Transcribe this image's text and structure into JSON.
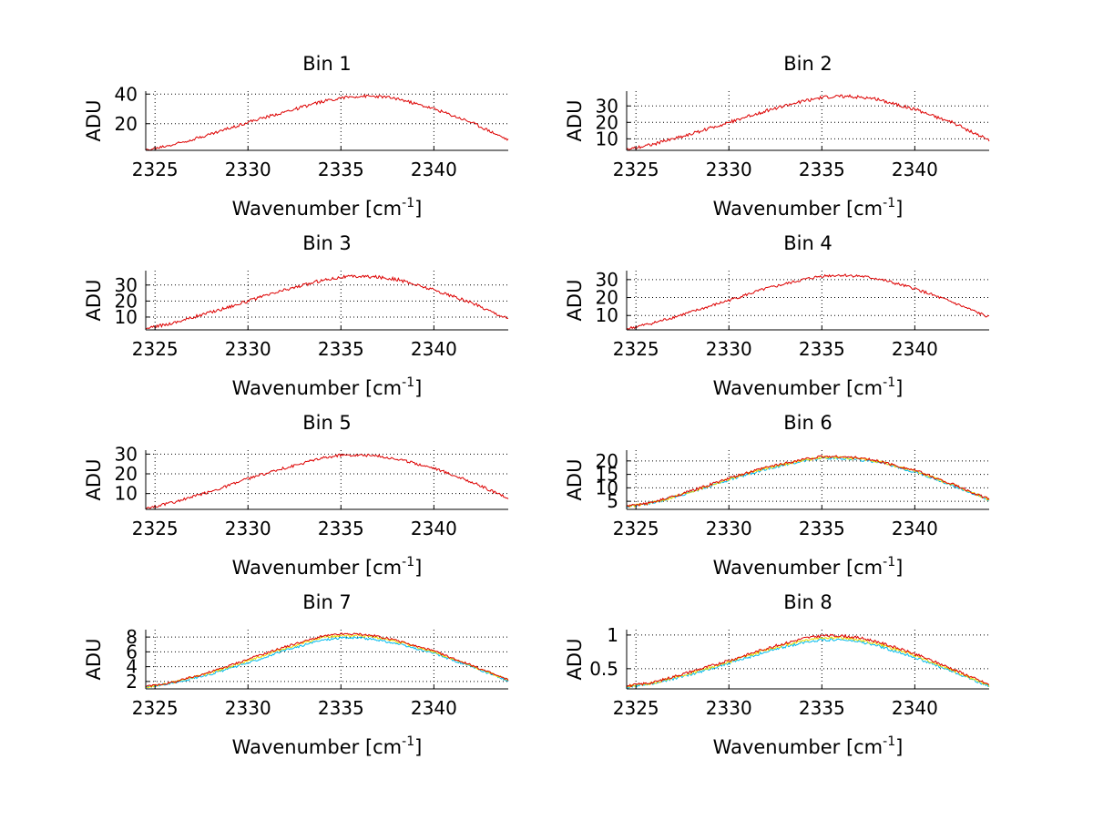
{
  "chart_data": [
    {
      "type": "line",
      "title": "Bin 1",
      "xlabel": "Wavenumber [cm",
      "xlabel_sup": "-1",
      "xlabel_end": "]",
      "ylabel": "ADU",
      "xlim": [
        2324.5,
        2344
      ],
      "ylim": [
        2,
        42
      ],
      "xticks": [
        2325,
        2330,
        2335,
        2340
      ],
      "yticks": [
        20,
        40
      ],
      "x": [
        2324.5,
        2326,
        2328,
        2330,
        2332,
        2334,
        2335,
        2336,
        2337,
        2338,
        2340,
        2342,
        2344
      ],
      "series": [
        {
          "values": [
            2.0,
            6.0,
            13.0,
            21.0,
            28.0,
            35.0,
            37.5,
            38.5,
            38.5,
            37.0,
            30.0,
            21.0,
            9.0
          ],
          "color": "#dd0000"
        }
      ],
      "noise": 1.0,
      "grid": true
    },
    {
      "type": "line",
      "title": "Bin 2",
      "xlabel": "Wavenumber [cm",
      "xlabel_sup": "-1",
      "xlabel_end": "]",
      "ylabel": "ADU",
      "xlim": [
        2324.5,
        2344
      ],
      "ylim": [
        3,
        39
      ],
      "xticks": [
        2325,
        2330,
        2335,
        2340
      ],
      "yticks": [
        10,
        20,
        30
      ],
      "x": [
        2324.5,
        2326,
        2328,
        2330,
        2332,
        2334,
        2335,
        2336,
        2337,
        2338,
        2340,
        2342,
        2344
      ],
      "series": [
        {
          "values": [
            3.5,
            7.0,
            13.0,
            20.0,
            27.0,
            33.0,
            35.0,
            36.0,
            35.5,
            34.0,
            28.0,
            20.0,
            9.0
          ],
          "color": "#dd0000"
        }
      ],
      "noise": 1.0,
      "grid": true
    },
    {
      "type": "line",
      "title": "Bin 3",
      "xlabel": "Wavenumber [cm",
      "xlabel_sup": "-1",
      "xlabel_end": "]",
      "ylabel": "ADU",
      "xlim": [
        2324.5,
        2344
      ],
      "ylim": [
        2,
        39
      ],
      "xticks": [
        2325,
        2330,
        2335,
        2340
      ],
      "yticks": [
        10,
        20,
        30
      ],
      "x": [
        2324.5,
        2326,
        2328,
        2330,
        2332,
        2334,
        2335,
        2336,
        2337,
        2338,
        2340,
        2342,
        2344
      ],
      "series": [
        {
          "values": [
            2.5,
            6.5,
            13.0,
            20.0,
            27.0,
            33.0,
            35.0,
            35.5,
            35.0,
            33.5,
            27.0,
            19.0,
            9.0
          ],
          "color": "#dd0000"
        }
      ],
      "noise": 1.0,
      "grid": true
    },
    {
      "type": "line",
      "title": "Bin 4",
      "xlabel": "Wavenumber [cm",
      "xlabel_sup": "-1",
      "xlabel_end": "]",
      "ylabel": "ADU",
      "xlim": [
        2324.5,
        2344
      ],
      "ylim": [
        2,
        35
      ],
      "xticks": [
        2325,
        2330,
        2335,
        2340
      ],
      "yticks": [
        10,
        20,
        30
      ],
      "x": [
        2324.5,
        2326,
        2328,
        2330,
        2332,
        2334,
        2335,
        2336,
        2337,
        2338,
        2340,
        2342,
        2344
      ],
      "series": [
        {
          "values": [
            2.5,
            6.0,
            12.0,
            18.5,
            25.0,
            30.0,
            32.0,
            32.5,
            32.0,
            30.5,
            25.0,
            17.5,
            9.0
          ],
          "color": "#dd0000"
        }
      ],
      "noise": 0.8,
      "grid": true
    },
    {
      "type": "line",
      "title": "Bin 5",
      "xlabel": "Wavenumber [cm",
      "xlabel_sup": "-1",
      "xlabel_end": "]",
      "ylabel": "ADU",
      "xlim": [
        2324.5,
        2344
      ],
      "ylim": [
        2,
        32
      ],
      "xticks": [
        2325,
        2330,
        2335,
        2340
      ],
      "yticks": [
        10,
        20,
        30
      ],
      "x": [
        2324.5,
        2326,
        2328,
        2330,
        2332,
        2334,
        2335,
        2336,
        2337,
        2338,
        2340,
        2342,
        2344
      ],
      "series": [
        {
          "values": [
            2.5,
            5.5,
            11.0,
            17.5,
            23.0,
            28.0,
            29.5,
            29.5,
            29.0,
            27.5,
            23.0,
            16.0,
            7.5
          ],
          "color": "#dd0000"
        }
      ],
      "noise": 0.7,
      "grid": true
    },
    {
      "type": "line",
      "title": "Bin 6",
      "xlabel": "Wavenumber [cm",
      "xlabel_sup": "-1",
      "xlabel_end": "]",
      "ylabel": "ADU",
      "xlim": [
        2324.5,
        2344
      ],
      "ylim": [
        2,
        24
      ],
      "xticks": [
        2325,
        2330,
        2335,
        2340
      ],
      "yticks": [
        5,
        10,
        15,
        20
      ],
      "x": [
        2324.5,
        2326,
        2328,
        2330,
        2332,
        2334,
        2335,
        2336,
        2337,
        2338,
        2340,
        2342,
        2344
      ],
      "series": [
        {
          "values": [
            3.0,
            4.5,
            8.5,
            13.0,
            17.0,
            20.0,
            21.0,
            21.0,
            20.5,
            19.5,
            16.0,
            11.0,
            5.5
          ],
          "color": "#00bbee"
        },
        {
          "values": [
            3.0,
            4.6,
            8.7,
            13.3,
            17.3,
            20.3,
            21.3,
            21.3,
            20.8,
            19.8,
            16.3,
            11.2,
            5.6
          ],
          "color": "#eedd00"
        },
        {
          "values": [
            3.1,
            4.7,
            8.9,
            13.5,
            17.6,
            20.6,
            21.6,
            21.6,
            21.1,
            20.0,
            16.5,
            11.4,
            5.7
          ],
          "color": "#dd0000"
        }
      ],
      "noise": 0.5,
      "grid": true
    },
    {
      "type": "line",
      "title": "Bin 7",
      "xlabel": "Wavenumber [cm",
      "xlabel_sup": "-1",
      "xlabel_end": "]",
      "ylabel": "ADU",
      "xlim": [
        2324.5,
        2344
      ],
      "ylim": [
        1,
        9
      ],
      "xticks": [
        2325,
        2330,
        2335,
        2340
      ],
      "yticks": [
        2,
        4,
        6,
        8
      ],
      "x": [
        2324.5,
        2326,
        2328,
        2330,
        2332,
        2334,
        2335,
        2336,
        2337,
        2338,
        2340,
        2342,
        2344
      ],
      "series": [
        {
          "values": [
            1.2,
            1.8,
            3.0,
            4.5,
            6.2,
            7.6,
            7.9,
            7.9,
            7.6,
            7.1,
            5.8,
            4.0,
            2.1
          ],
          "color": "#00bbee"
        },
        {
          "values": [
            1.2,
            1.9,
            3.2,
            4.8,
            6.5,
            7.9,
            8.2,
            8.2,
            7.9,
            7.4,
            6.0,
            4.1,
            2.2
          ],
          "color": "#eedd00"
        },
        {
          "values": [
            1.3,
            1.9,
            3.3,
            5.0,
            6.7,
            8.1,
            8.4,
            8.4,
            8.1,
            7.5,
            6.1,
            4.2,
            2.2
          ],
          "color": "#dd0000"
        }
      ],
      "noise": 0.15,
      "grid": true
    },
    {
      "type": "line",
      "title": "Bin 8",
      "xlabel": "Wavenumber [cm",
      "xlabel_sup": "-1",
      "xlabel_end": "]",
      "ylabel": "ADU",
      "xlim": [
        2324.5,
        2344
      ],
      "ylim": [
        0.2,
        1.08
      ],
      "xticks": [
        2325,
        2330,
        2335,
        2340
      ],
      "yticks": [
        0.5,
        1
      ],
      "x": [
        2324.5,
        2326,
        2328,
        2330,
        2332,
        2334,
        2335,
        2336,
        2337,
        2338,
        2340,
        2342,
        2344
      ],
      "series": [
        {
          "values": [
            0.22,
            0.28,
            0.42,
            0.58,
            0.75,
            0.89,
            0.93,
            0.93,
            0.9,
            0.84,
            0.67,
            0.46,
            0.24
          ],
          "color": "#00bbee"
        },
        {
          "values": [
            0.23,
            0.29,
            0.44,
            0.6,
            0.78,
            0.92,
            0.96,
            0.96,
            0.93,
            0.87,
            0.7,
            0.48,
            0.25
          ],
          "color": "#eedd00"
        },
        {
          "values": [
            0.24,
            0.3,
            0.46,
            0.62,
            0.8,
            0.95,
            0.99,
            0.99,
            0.96,
            0.9,
            0.72,
            0.5,
            0.26
          ],
          "color": "#dd0000"
        }
      ],
      "noise": 0.02,
      "grid": true
    }
  ]
}
